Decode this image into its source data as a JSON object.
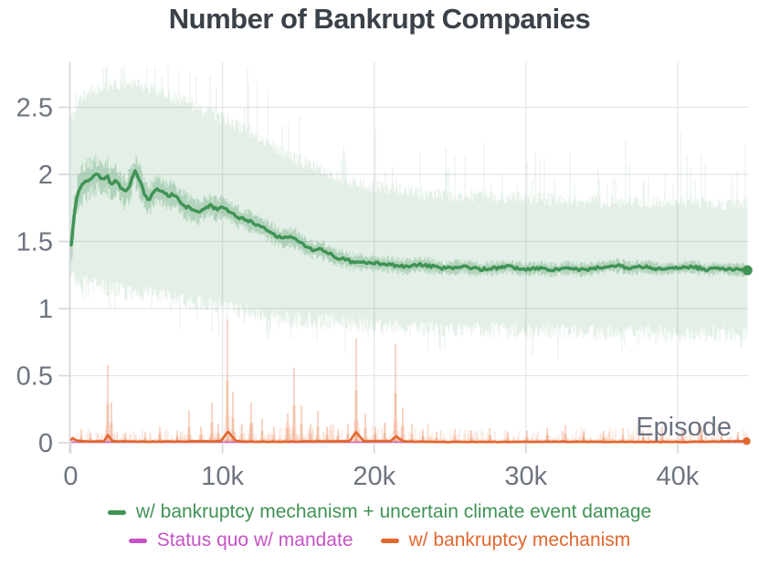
{
  "chart_data": {
    "type": "line",
    "title": "Number of Bankrupt Companies",
    "x_axis": {
      "label": "Episode",
      "ticks": [
        {
          "v": 0,
          "label": "0"
        },
        {
          "v": 10,
          "label": "10k"
        },
        {
          "v": 20,
          "label": "20k"
        },
        {
          "v": 30,
          "label": "30k"
        },
        {
          "v": 40,
          "label": "40k"
        }
      ],
      "xlim_episodes": [
        0,
        44600
      ]
    },
    "y_axis": {
      "label": "",
      "ticks": [
        {
          "v": 0,
          "label": "0"
        },
        {
          "v": 0.5,
          "label": "0.5"
        },
        {
          "v": 1,
          "label": "1"
        },
        {
          "v": 1.5,
          "label": "1.5"
        },
        {
          "v": 2,
          "label": "2"
        },
        {
          "v": 2.5,
          "label": "2.5"
        }
      ],
      "ylim": [
        0,
        2.84
      ]
    },
    "grid": true,
    "colors": {
      "title": "#3a4149",
      "tick_label": "#6e7580",
      "axis_label": "#6b7280",
      "gridline": "#e5e6e8",
      "spine": "#d5d7da",
      "green": "#3f9355",
      "magenta": "#c553c5",
      "orange": "#e2672f"
    },
    "noise_seed": 12345,
    "series": [
      {
        "name": "w/ bankruptcy mechanism + uncertain climate event damage",
        "color": "#3f9355",
        "style": "mean line with noisy raw-data band, end dot",
        "mean_ep_k_value": [
          [
            0,
            1.44
          ],
          [
            0.1,
            1.55
          ],
          [
            0.25,
            1.72
          ],
          [
            0.45,
            1.85
          ],
          [
            0.7,
            1.92
          ],
          [
            1.0,
            1.95
          ],
          [
            1.4,
            1.98
          ],
          [
            1.8,
            2.0
          ],
          [
            2.1,
            1.96
          ],
          [
            2.4,
            1.99
          ],
          [
            2.7,
            1.92
          ],
          [
            3.0,
            1.96
          ],
          [
            3.3,
            1.9
          ],
          [
            3.6,
            1.86
          ],
          [
            3.9,
            1.92
          ],
          [
            4.2,
            2.03
          ],
          [
            4.5,
            1.97
          ],
          [
            4.8,
            1.87
          ],
          [
            5.1,
            1.81
          ],
          [
            5.4,
            1.85
          ],
          [
            5.7,
            1.9
          ],
          [
            6.0,
            1.87
          ],
          [
            6.4,
            1.84
          ],
          [
            6.8,
            1.85
          ],
          [
            7.2,
            1.8
          ],
          [
            7.6,
            1.76
          ],
          [
            8.0,
            1.74
          ],
          [
            8.4,
            1.72
          ],
          [
            8.8,
            1.75
          ],
          [
            9.2,
            1.77
          ],
          [
            9.6,
            1.74
          ],
          [
            10.0,
            1.76
          ],
          [
            10.4,
            1.73
          ],
          [
            10.8,
            1.7
          ],
          [
            11.2,
            1.67
          ],
          [
            11.6,
            1.66
          ],
          [
            12.0,
            1.64
          ],
          [
            12.4,
            1.62
          ],
          [
            12.8,
            1.6
          ],
          [
            13.2,
            1.57
          ],
          [
            13.6,
            1.54
          ],
          [
            14.0,
            1.52
          ],
          [
            14.4,
            1.53
          ],
          [
            14.8,
            1.52
          ],
          [
            15.2,
            1.49
          ],
          [
            15.6,
            1.45
          ],
          [
            16.0,
            1.44
          ],
          [
            16.5,
            1.44
          ],
          [
            17.0,
            1.41
          ],
          [
            17.5,
            1.38
          ],
          [
            18.0,
            1.37
          ],
          [
            18.5,
            1.35
          ],
          [
            19.0,
            1.35
          ],
          [
            19.5,
            1.34
          ],
          [
            20.0,
            1.34
          ],
          [
            20.5,
            1.33
          ],
          [
            21.0,
            1.33
          ],
          [
            21.5,
            1.32
          ],
          [
            22.0,
            1.31
          ],
          [
            22.5,
            1.32
          ],
          [
            23.0,
            1.33
          ],
          [
            23.5,
            1.32
          ],
          [
            24.0,
            1.31
          ],
          [
            24.5,
            1.3
          ],
          [
            25.0,
            1.3
          ],
          [
            25.5,
            1.31
          ],
          [
            26.0,
            1.31
          ],
          [
            26.5,
            1.3
          ],
          [
            27.0,
            1.29
          ],
          [
            27.5,
            1.3
          ],
          [
            28.0,
            1.3
          ],
          [
            28.5,
            1.31
          ],
          [
            29.0,
            1.31
          ],
          [
            29.5,
            1.3
          ],
          [
            30.0,
            1.29
          ],
          [
            30.5,
            1.3
          ],
          [
            31.0,
            1.3
          ],
          [
            31.5,
            1.29
          ],
          [
            32.0,
            1.29
          ],
          [
            32.5,
            1.3
          ],
          [
            33.0,
            1.3
          ],
          [
            33.5,
            1.29
          ],
          [
            34.0,
            1.29
          ],
          [
            34.5,
            1.3
          ],
          [
            35.0,
            1.31
          ],
          [
            35.5,
            1.32
          ],
          [
            36.0,
            1.32
          ],
          [
            36.5,
            1.31
          ],
          [
            37.0,
            1.3
          ],
          [
            37.5,
            1.31
          ],
          [
            38.0,
            1.31
          ],
          [
            38.5,
            1.3
          ],
          [
            39.0,
            1.29
          ],
          [
            39.5,
            1.3
          ],
          [
            40.0,
            1.3
          ],
          [
            40.5,
            1.31
          ],
          [
            41.0,
            1.31
          ],
          [
            41.5,
            1.3
          ],
          [
            42.0,
            1.29
          ],
          [
            42.5,
            1.3
          ],
          [
            43.0,
            1.3
          ],
          [
            43.5,
            1.29
          ],
          [
            44.0,
            1.29
          ],
          [
            44.6,
            1.285
          ]
        ],
        "band_ep_k_upper_lower": [
          [
            0,
            2.45,
            1.18
          ],
          [
            0.5,
            2.6,
            1.15
          ],
          [
            1,
            2.65,
            1.13
          ],
          [
            2,
            2.7,
            1.1
          ],
          [
            3,
            2.72,
            1.08
          ],
          [
            4,
            2.73,
            1.06
          ],
          [
            5,
            2.7,
            1.05
          ],
          [
            6,
            2.66,
            1.03
          ],
          [
            7,
            2.62,
            1.01
          ],
          [
            8,
            2.57,
            0.99
          ],
          [
            9,
            2.52,
            0.97
          ],
          [
            10,
            2.47,
            0.95
          ],
          [
            11,
            2.42,
            0.93
          ],
          [
            12,
            2.36,
            0.91
          ],
          [
            13,
            2.29,
            0.89
          ],
          [
            14,
            2.22,
            0.87
          ],
          [
            15,
            2.16,
            0.86
          ],
          [
            16,
            2.11,
            0.85
          ],
          [
            17,
            2.06,
            0.84
          ],
          [
            18,
            2.01,
            0.83
          ],
          [
            19,
            1.98,
            0.82
          ],
          [
            20,
            1.96,
            0.81
          ],
          [
            22,
            1.93,
            0.8
          ],
          [
            24,
            1.9,
            0.79
          ],
          [
            26,
            1.89,
            0.78
          ],
          [
            28,
            1.88,
            0.78
          ],
          [
            30,
            1.87,
            0.77
          ],
          [
            32,
            1.86,
            0.77
          ],
          [
            34,
            1.85,
            0.76
          ],
          [
            36,
            1.85,
            0.76
          ],
          [
            38,
            1.84,
            0.76
          ],
          [
            40,
            1.84,
            0.75
          ],
          [
            42,
            1.83,
            0.75
          ],
          [
            44.6,
            1.83,
            0.75
          ]
        ],
        "end_dot_ep_k_value": [
          44.6,
          1.285
        ]
      },
      {
        "name": "Status quo w/ mandate",
        "color": "#c553c5",
        "style": "flat line at zero (hidden beneath orange baseline)",
        "mean_ep_k_value": [
          [
            0,
            0.004
          ],
          [
            44.6,
            0.004
          ]
        ]
      },
      {
        "name": "w/ bankruptcy mechanism",
        "color": "#e2672f",
        "style": "near-zero line with spike band, end dot",
        "mean_ep_k_value": [
          [
            0,
            0.02
          ],
          [
            0.15,
            0.035
          ],
          [
            0.3,
            0.02
          ],
          [
            0.6,
            0.012
          ],
          [
            1.5,
            0.01
          ],
          [
            2.2,
            0.012
          ],
          [
            2.45,
            0.06
          ],
          [
            2.75,
            0.012
          ],
          [
            4,
            0.008
          ],
          [
            6,
            0.008
          ],
          [
            8,
            0.01
          ],
          [
            9.9,
            0.012
          ],
          [
            10.35,
            0.085
          ],
          [
            10.9,
            0.012
          ],
          [
            12,
            0.008
          ],
          [
            14,
            0.008
          ],
          [
            16,
            0.01
          ],
          [
            18.4,
            0.012
          ],
          [
            18.8,
            0.08
          ],
          [
            19.3,
            0.012
          ],
          [
            21.1,
            0.012
          ],
          [
            21.45,
            0.05
          ],
          [
            21.9,
            0.01
          ],
          [
            24,
            0.006
          ],
          [
            28,
            0.006
          ],
          [
            32,
            0.008
          ],
          [
            36,
            0.006
          ],
          [
            40,
            0.006
          ],
          [
            44.6,
            0.012
          ]
        ],
        "spikes_ep_k_height": [
          [
            0.7,
            0.1
          ],
          [
            1.3,
            0.07
          ],
          [
            2.45,
            0.58
          ],
          [
            2.7,
            0.3
          ],
          [
            3.6,
            0.07
          ],
          [
            4.9,
            0.08
          ],
          [
            5.9,
            0.12
          ],
          [
            7.0,
            0.09
          ],
          [
            7.8,
            0.24
          ],
          [
            8.6,
            0.12
          ],
          [
            9.3,
            0.3
          ],
          [
            9.7,
            0.14
          ],
          [
            10.35,
            0.92
          ],
          [
            10.7,
            0.38
          ],
          [
            11.3,
            0.14
          ],
          [
            11.9,
            0.3
          ],
          [
            12.6,
            0.18
          ],
          [
            13.4,
            0.12
          ],
          [
            14.3,
            0.22
          ],
          [
            14.7,
            0.56
          ],
          [
            15.2,
            0.28
          ],
          [
            15.8,
            0.14
          ],
          [
            16.3,
            0.24
          ],
          [
            16.9,
            0.12
          ],
          [
            17.6,
            0.1
          ],
          [
            18.3,
            0.14
          ],
          [
            18.8,
            0.78
          ],
          [
            19.4,
            0.22
          ],
          [
            20.1,
            0.12
          ],
          [
            20.7,
            0.15
          ],
          [
            21.4,
            0.74
          ],
          [
            21.9,
            0.26
          ],
          [
            22.5,
            0.14
          ],
          [
            23.2,
            0.1
          ],
          [
            24.1,
            0.08
          ],
          [
            25.3,
            0.1
          ],
          [
            26.4,
            0.09
          ],
          [
            27.6,
            0.11
          ],
          [
            28.8,
            0.08
          ],
          [
            30.1,
            0.09
          ],
          [
            31.4,
            0.11
          ],
          [
            32.6,
            0.13
          ],
          [
            33.8,
            0.08
          ],
          [
            35.1,
            0.09
          ],
          [
            36.4,
            0.11
          ],
          [
            37.7,
            0.09
          ],
          [
            39.0,
            0.12
          ],
          [
            40.3,
            0.1
          ],
          [
            41.6,
            0.12
          ],
          [
            42.9,
            0.09
          ],
          [
            44.0,
            0.08
          ]
        ],
        "end_dot_ep_k_value": [
          44.55,
          0.012
        ]
      }
    ]
  },
  "legend": {
    "items": [
      {
        "label": "w/ bankruptcy mechanism + uncertain climate event damage",
        "color": "#3f9355"
      },
      {
        "label": "Status quo w/ mandate",
        "color": "#c553c5"
      },
      {
        "label": "w/ bankruptcy mechanism",
        "color": "#e2672f"
      }
    ]
  }
}
